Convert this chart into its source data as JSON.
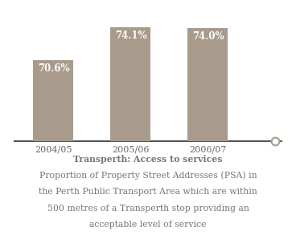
{
  "categories": [
    "2004/05",
    "2005/06",
    "2006/07"
  ],
  "values": [
    70.6,
    74.1,
    74.0
  ],
  "bar_color": "#a89b8c",
  "bar_labels": [
    "70.6%",
    "74.1%",
    "74.0%"
  ],
  "ymin": 62,
  "ymax": 76,
  "background_color": "#ffffff",
  "label_color": "#ffffff",
  "label_fontsize": 8.5,
  "tick_label_color": "#666666",
  "tick_fontsize": 8,
  "caption_lines": [
    "Transperth: Access to services",
    "Proportion of Property Street Addresses (PSA) in",
    "the Perth Public Transport Area which are within",
    "500 metres of a Transperth stop providing an",
    "acceptable level of service"
  ],
  "caption_color": "#777777",
  "caption_fontsize": 7.8,
  "axis_line_color": "#555555",
  "circle_color": "#a89b8c",
  "bar_width": 0.52
}
